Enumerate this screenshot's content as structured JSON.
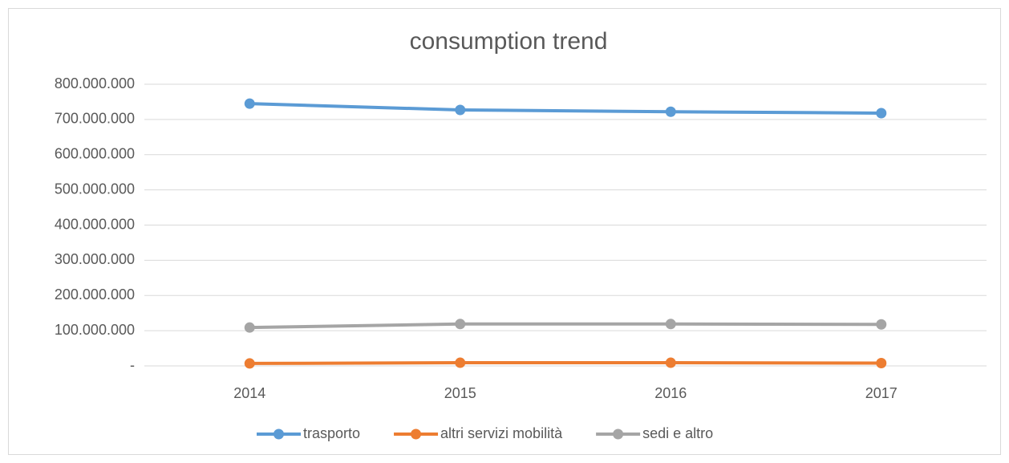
{
  "chart_data": {
    "type": "line",
    "title": "consumption trend",
    "categories": [
      "2014",
      "2015",
      "2016",
      "2017"
    ],
    "series": [
      {
        "name": "trasporto",
        "color": "#5b9bd5",
        "values": [
          745000000,
          727000000,
          722000000,
          718000000
        ]
      },
      {
        "name": "altri servizi mobilità",
        "color": "#ed7d31",
        "values": [
          7000000,
          9000000,
          9000000,
          8000000
        ]
      },
      {
        "name": "sedi e altro",
        "color": "#a5a5a5",
        "values": [
          109000000,
          119000000,
          119000000,
          118000000
        ]
      }
    ],
    "ylim": [
      0,
      800000000
    ],
    "yticks": [
      {
        "value": 0,
        "label": "-"
      },
      {
        "value": 100000000,
        "label": "100.000.000"
      },
      {
        "value": 200000000,
        "label": "200.000.000"
      },
      {
        "value": 300000000,
        "label": "300.000.000"
      },
      {
        "value": 400000000,
        "label": "400.000.000"
      },
      {
        "value": 500000000,
        "label": "500.000.000"
      },
      {
        "value": 600000000,
        "label": "600.000.000"
      },
      {
        "value": 700000000,
        "label": "700.000.000"
      },
      {
        "value": 800000000,
        "label": "800.000.000"
      }
    ],
    "grid": true,
    "legend": "bottom"
  }
}
